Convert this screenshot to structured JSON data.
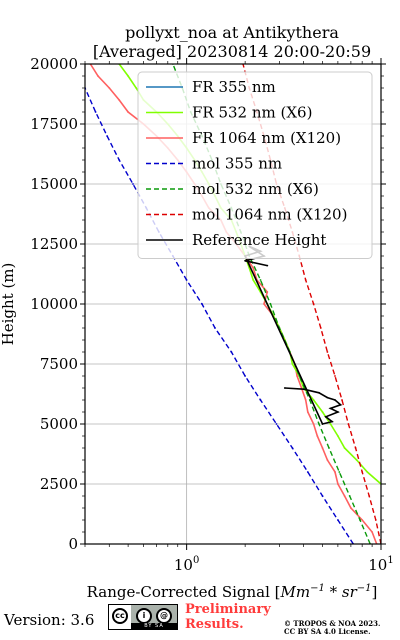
{
  "chart_data": {
    "type": "line",
    "title": [
      "pollyxt_noa at Antikythera",
      "[Averaged] 20230814 20:00-20:59"
    ],
    "xlabel_prefix": "Range-Corrected Signal [",
    "xlabel_unit": "Mm",
    "xlabel_exp1": "−1",
    "xlabel_mid": " * sr",
    "xlabel_exp2": "−1",
    "xlabel_suffix": "]",
    "ylabel": "Height (m)",
    "xscale": "log",
    "xlim": [
      0.3,
      10
    ],
    "ylim": [
      0,
      20000
    ],
    "x_ticks": [
      {
        "value": 1,
        "base": "10",
        "exp": "0"
      },
      {
        "value": 10,
        "base": "10",
        "exp": "1"
      }
    ],
    "y_ticks": [
      0,
      2500,
      5000,
      7500,
      10000,
      12500,
      15000,
      17500,
      20000
    ],
    "grid": true,
    "legend_position": "top-right",
    "legend": [
      {
        "label": "FR 355 nm",
        "color": "#1f77b4",
        "style": "solid"
      },
      {
        "label": "FR 532 nm (X6)",
        "color": "#80ff00",
        "style": "solid"
      },
      {
        "label": "FR 1064 nm (X120)",
        "color": "#ff6060",
        "style": "solid"
      },
      {
        "label": "mol 355 nm",
        "color": "#0000cc",
        "style": "dashed"
      },
      {
        "label": "mol 532 nm (X6)",
        "color": "#0a9a0a",
        "style": "dashed"
      },
      {
        "label": "mol 1064 nm (X120)",
        "color": "#dd0000",
        "style": "dashed"
      },
      {
        "label": "Reference Height",
        "color": "#000000",
        "style": "solid"
      }
    ],
    "series": [
      {
        "name": "FR 1064 nm (X120)",
        "color": "#ff6060",
        "points": [
          [
            9.5,
            0
          ],
          [
            9,
            500
          ],
          [
            8,
            1000
          ],
          [
            7,
            1500
          ],
          [
            6.5,
            2000
          ],
          [
            6,
            2500
          ],
          [
            5.8,
            3000
          ],
          [
            5.3,
            3500
          ],
          [
            5,
            4000
          ],
          [
            4.7,
            4500
          ],
          [
            4.5,
            5000
          ],
          [
            4.2,
            5500
          ],
          [
            4.1,
            6000
          ],
          [
            3.9,
            6500
          ],
          [
            3.7,
            7000
          ],
          [
            3.6,
            7500
          ],
          [
            3.4,
            8000
          ],
          [
            3.2,
            8500
          ],
          [
            3,
            9000
          ],
          [
            2.8,
            9500
          ],
          [
            2.5,
            10000
          ],
          [
            2.6,
            10500
          ],
          [
            2.3,
            11000
          ],
          [
            2.2,
            11500
          ],
          [
            2,
            12000
          ],
          [
            1.8,
            12500
          ],
          [
            1.6,
            13000
          ],
          [
            1.5,
            13500
          ],
          [
            1.3,
            14000
          ],
          [
            1.2,
            14500
          ],
          [
            1.1,
            15000
          ],
          [
            1,
            15500
          ],
          [
            0.9,
            16000
          ],
          [
            0.8,
            16500
          ],
          [
            0.7,
            17000
          ],
          [
            0.6,
            17500
          ],
          [
            0.5,
            18000
          ],
          [
            0.45,
            18500
          ],
          [
            0.4,
            19000
          ],
          [
            0.35,
            19500
          ],
          [
            0.32,
            20000
          ]
        ]
      },
      {
        "name": "FR 532 nm (X6)",
        "color": "#80ff00",
        "points": [
          [
            10,
            2500
          ],
          [
            8.5,
            3000
          ],
          [
            7.5,
            3500
          ],
          [
            6.5,
            4000
          ],
          [
            6,
            4500
          ],
          [
            5.5,
            5000
          ],
          [
            5,
            5500
          ],
          [
            4.5,
            6000
          ],
          [
            4,
            6500
          ],
          [
            3.8,
            7000
          ],
          [
            3.5,
            7500
          ],
          [
            3.4,
            8000
          ],
          [
            3.2,
            8500
          ],
          [
            3,
            9000
          ],
          [
            2.8,
            9500
          ],
          [
            2.6,
            10000
          ],
          [
            2.4,
            10500
          ],
          [
            2.2,
            11000
          ],
          [
            2.1,
            11500
          ],
          [
            2,
            12000
          ],
          [
            1.9,
            12500
          ],
          [
            1.8,
            13000
          ],
          [
            1.7,
            13500
          ],
          [
            1.5,
            14000
          ],
          [
            1.4,
            14500
          ],
          [
            1.3,
            15000
          ],
          [
            1.2,
            15500
          ],
          [
            1.1,
            16000
          ],
          [
            1,
            16500
          ],
          [
            0.9,
            17000
          ],
          [
            0.8,
            17500
          ],
          [
            0.7,
            18000
          ],
          [
            0.6,
            18500
          ],
          [
            0.55,
            19000
          ],
          [
            0.5,
            19500
          ],
          [
            0.45,
            20000
          ]
        ]
      },
      {
        "name": "mol 355 nm",
        "color": "#0000cc",
        "points": [
          [
            7.2,
            0
          ],
          [
            6,
            1000
          ],
          [
            5,
            2000
          ],
          [
            4.2,
            3000
          ],
          [
            3.5,
            4000
          ],
          [
            2.9,
            5000
          ],
          [
            2.4,
            6000
          ],
          [
            2,
            7000
          ],
          [
            1.7,
            8000
          ],
          [
            1.4,
            9000
          ],
          [
            1.2,
            10000
          ],
          [
            1,
            11000
          ],
          [
            0.85,
            12000
          ],
          [
            0.72,
            13000
          ],
          [
            0.62,
            14000
          ],
          [
            0.53,
            15000
          ],
          [
            0.45,
            16000
          ],
          [
            0.39,
            17000
          ],
          [
            0.34,
            18000
          ],
          [
            0.3,
            19000
          ]
        ]
      },
      {
        "name": "mol 532 nm (X6)",
        "color": "#0a9a0a",
        "points": [
          [
            8.8,
            0
          ],
          [
            7.8,
            1000
          ],
          [
            6.9,
            2000
          ],
          [
            6.1,
            3000
          ],
          [
            5.4,
            4000
          ],
          [
            4.8,
            5000
          ],
          [
            4.3,
            6000
          ],
          [
            3.8,
            7000
          ],
          [
            3.4,
            8000
          ],
          [
            3,
            9000
          ],
          [
            2.7,
            10000
          ],
          [
            2.4,
            11000
          ],
          [
            2.1,
            12000
          ],
          [
            1.9,
            13000
          ],
          [
            1.7,
            14000
          ],
          [
            1.5,
            15000
          ],
          [
            1.35,
            16000
          ],
          [
            1.2,
            17000
          ],
          [
            1.05,
            18000
          ],
          [
            0.95,
            19000
          ],
          [
            0.85,
            20000
          ]
        ]
      },
      {
        "name": "mol 1064 nm (X120)",
        "color": "#dd0000",
        "points": [
          [
            10,
            0
          ],
          [
            9.4,
            1000
          ],
          [
            8.7,
            2000
          ],
          [
            8,
            3000
          ],
          [
            7.4,
            4000
          ],
          [
            6.8,
            5000
          ],
          [
            6.3,
            6000
          ],
          [
            5.8,
            7000
          ],
          [
            5.3,
            8000
          ],
          [
            4.9,
            9000
          ],
          [
            4.5,
            10000
          ],
          [
            4.1,
            11000
          ],
          [
            3.8,
            12000
          ],
          [
            3.5,
            13000
          ],
          [
            3.2,
            14000
          ],
          [
            2.9,
            15000
          ],
          [
            2.7,
            16000
          ],
          [
            2.5,
            17000
          ],
          [
            2.3,
            18000
          ],
          [
            2.1,
            19000
          ],
          [
            1.95,
            20000
          ]
        ]
      },
      {
        "name": "Reference Height",
        "color": "#000000",
        "points": [
          [
            3.2,
            6500
          ],
          [
            4,
            6450
          ],
          [
            4.8,
            6300
          ],
          [
            5.3,
            6100
          ],
          [
            5.8,
            6000
          ],
          [
            6.2,
            5800
          ],
          [
            5.5,
            5650
          ],
          [
            6,
            5500
          ],
          [
            5.2,
            5300
          ],
          [
            5.6,
            5100
          ],
          [
            5,
            5000
          ],
          [
            2,
            12000
          ],
          [
            2.4,
            12200
          ],
          [
            2.1,
            12400
          ],
          [
            2.5,
            12000
          ],
          [
            2,
            11800
          ],
          [
            2.6,
            11600
          ]
        ]
      }
    ]
  },
  "footer": {
    "version_text": "Version: 3.6",
    "cc_left": "cc",
    "cc_icons": [
      "i",
      "@"
    ],
    "cc_strip": "BY  SA",
    "preliminary_line1": "Preliminary",
    "preliminary_line2": "Results.",
    "copyright_line1": "© TROPOS & NOA 2023.",
    "copyright_line2": "CC BY SA 4.0 License."
  }
}
